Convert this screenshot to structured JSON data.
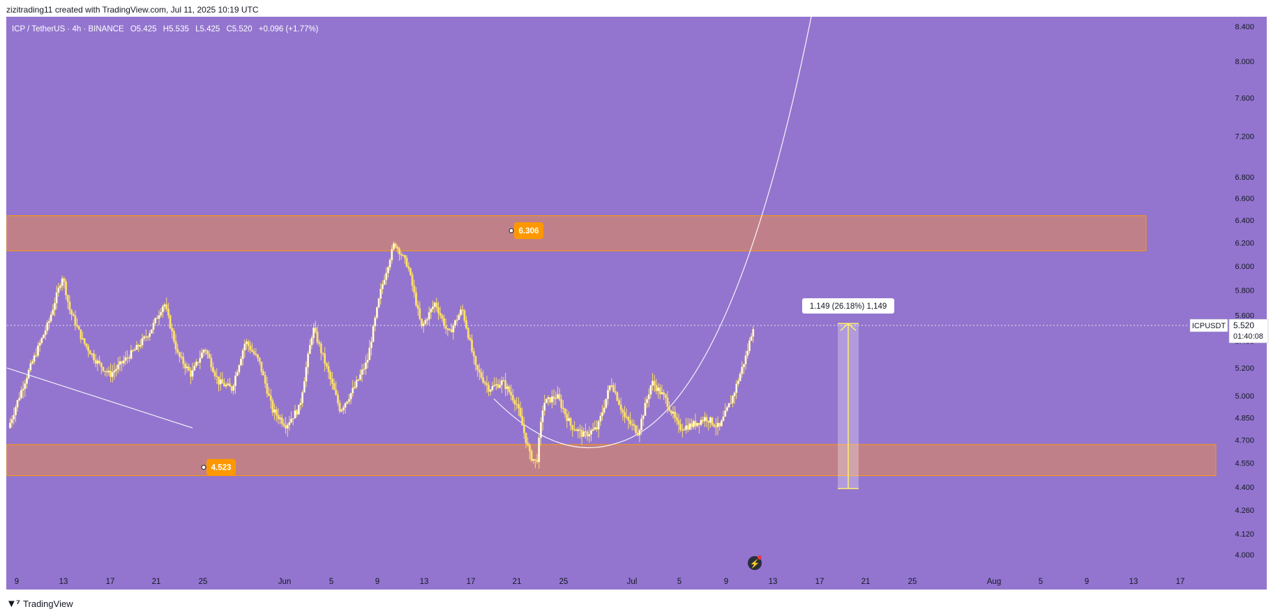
{
  "header": {
    "caption": "zizitrading11 created with TradingView.com, Jul 11, 2025 10:19 UTC"
  },
  "symbol": {
    "pair": "ICP / TetherUS · 4h · BINANCE",
    "open": "O5.425",
    "high": "H5.535",
    "low": "L5.425",
    "close": "C5.520",
    "change": "+0.096 (+1.77%)"
  },
  "footer": {
    "brand": "TradingView",
    "logo_icon": "tradingview-logo-icon"
  },
  "price_tag": {
    "ticker": "ICPUSDT",
    "price": "5.520",
    "countdown": "01:40:08"
  },
  "zone_labels": {
    "upper": "6.306",
    "lower": "4.523"
  },
  "measure_label": "1.149 (26.18%) 1,149",
  "colors": {
    "background": "#9375cf",
    "zone_fill": "#c8827e",
    "zone_border": "#ff9800",
    "candle": "#ffe066",
    "label_bg": "#ff9800",
    "measure": "#fff06a"
  },
  "chart_data": {
    "type": "candlestick",
    "title": "",
    "y_scale": "log",
    "ylim": [
      3.9,
      8.5
    ],
    "y_ticks": [
      "8.400",
      "8.000",
      "7.600",
      "7.200",
      "6.800",
      "6.600",
      "6.400",
      "6.200",
      "6.000",
      "5.800",
      "5.600",
      "5.400",
      "5.200",
      "5.000",
      "4.850",
      "4.700",
      "4.550",
      "4.400",
      "4.260",
      "4.120",
      "4.000"
    ],
    "x_ticks": [
      "9",
      "13",
      "17",
      "21",
      "25",
      "Jun",
      "5",
      "9",
      "13",
      "17",
      "21",
      "25",
      "Jul",
      "5",
      "9",
      "13",
      "17",
      "21",
      "25",
      "Aug",
      "5",
      "9",
      "13",
      "17"
    ],
    "zones": [
      {
        "name": "resistance",
        "low": 6.13,
        "high": 6.44,
        "label": "6.306"
      },
      {
        "name": "support",
        "low": 4.47,
        "high": 4.67,
        "label": "4.523"
      }
    ],
    "price_path": [
      [
        0,
        4.78
      ],
      [
        4,
        5.05
      ],
      [
        8,
        5.3
      ],
      [
        12,
        5.55
      ],
      [
        16,
        5.92
      ],
      [
        18,
        5.65
      ],
      [
        22,
        5.4
      ],
      [
        26,
        5.25
      ],
      [
        30,
        5.15
      ],
      [
        34,
        5.25
      ],
      [
        38,
        5.35
      ],
      [
        42,
        5.48
      ],
      [
        46,
        5.7
      ],
      [
        50,
        5.3
      ],
      [
        54,
        5.15
      ],
      [
        58,
        5.35
      ],
      [
        62,
        5.1
      ],
      [
        66,
        5.05
      ],
      [
        70,
        5.4
      ],
      [
        74,
        5.25
      ],
      [
        78,
        4.9
      ],
      [
        82,
        4.8
      ],
      [
        86,
        4.92
      ],
      [
        90,
        5.5
      ],
      [
        94,
        5.2
      ],
      [
        98,
        4.9
      ],
      [
        102,
        5.05
      ],
      [
        106,
        5.25
      ],
      [
        110,
        5.8
      ],
      [
        114,
        6.2
      ],
      [
        118,
        6.0
      ],
      [
        122,
        5.5
      ],
      [
        126,
        5.7
      ],
      [
        130,
        5.45
      ],
      [
        134,
        5.65
      ],
      [
        138,
        5.2
      ],
      [
        142,
        5.05
      ],
      [
        146,
        5.1
      ],
      [
        150,
        4.95
      ],
      [
        154,
        4.6
      ],
      [
        156,
        4.55
      ],
      [
        158,
        4.95
      ],
      [
        162,
        5.0
      ],
      [
        166,
        4.8
      ],
      [
        170,
        4.73
      ],
      [
        174,
        4.78
      ],
      [
        178,
        5.1
      ],
      [
        182,
        4.85
      ],
      [
        186,
        4.75
      ],
      [
        190,
        5.1
      ],
      [
        194,
        4.98
      ],
      [
        198,
        4.78
      ],
      [
        202,
        4.8
      ],
      [
        206,
        4.85
      ],
      [
        210,
        4.78
      ],
      [
        214,
        5.0
      ],
      [
        218,
        5.3
      ],
      [
        220,
        5.52
      ]
    ],
    "measure": {
      "from": 4.39,
      "to": 5.535,
      "text": "1.149 (26.18%) 1,149"
    },
    "last_price": 5.52
  }
}
